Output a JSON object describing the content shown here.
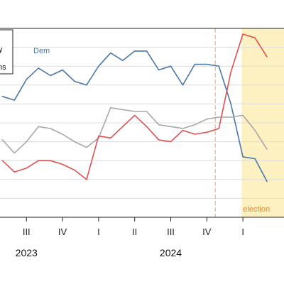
{
  "chart_data": {
    "type": "line",
    "title": "",
    "xlabel": "",
    "ylabel": "",
    "grid": true,
    "quarter_ticks": [
      {
        "label": "III",
        "t": 2
      },
      {
        "label": "IV",
        "t": 5
      },
      {
        "label": "I",
        "t": 8
      },
      {
        "label": "II",
        "t": 11
      },
      {
        "label": "III",
        "t": 14
      },
      {
        "label": "IV",
        "t": 17
      },
      {
        "label": "I",
        "t": 20
      }
    ],
    "year_labels": [
      {
        "label": "2023",
        "t": 2
      },
      {
        "label": "2024",
        "t": 14
      }
    ],
    "t_range": [
      -0.2,
      22
    ],
    "y_range": [
      0,
      100
    ],
    "x": [
      0,
      1,
      2,
      3,
      4,
      5,
      6,
      7,
      8,
      9,
      10,
      11,
      12,
      13,
      14,
      15,
      16,
      17,
      18,
      19,
      20,
      21,
      22
    ],
    "series": [
      {
        "name": "Dem",
        "color": "#4a78a8",
        "values": [
          64,
          62,
          73,
          79,
          75,
          78,
          72,
          70,
          80,
          87,
          83,
          88,
          88,
          78,
          80,
          70,
          81,
          81,
          80,
          60,
          32,
          31,
          19
        ]
      },
      {
        "name": "",
        "color": "#a8a8a8",
        "values": [
          41,
          34,
          40,
          48,
          47,
          44,
          40,
          37,
          42,
          58,
          57,
          56,
          56,
          49,
          48,
          47,
          49,
          52,
          53,
          53,
          54,
          46,
          36
        ]
      },
      {
        "name": "",
        "color": "#e05050",
        "values": [
          30,
          24,
          26,
          30,
          30,
          28,
          25,
          20,
          43,
          42,
          48,
          54,
          48,
          41,
          40,
          46,
          44,
          45,
          47,
          77,
          97,
          95,
          85
        ]
      }
    ],
    "series_labels": [
      {
        "text": "Dem",
        "series": 0
      }
    ],
    "legend_fragments": [
      "y",
      "ns"
    ],
    "annotations": [
      {
        "text": "election",
        "t": 19,
        "color": "#e08a2e"
      }
    ],
    "shaded_period": {
      "from_t": 19.9,
      "color": "#fdf1c2"
    },
    "event_line": {
      "t": 17.7,
      "color": "#f0a070"
    }
  }
}
